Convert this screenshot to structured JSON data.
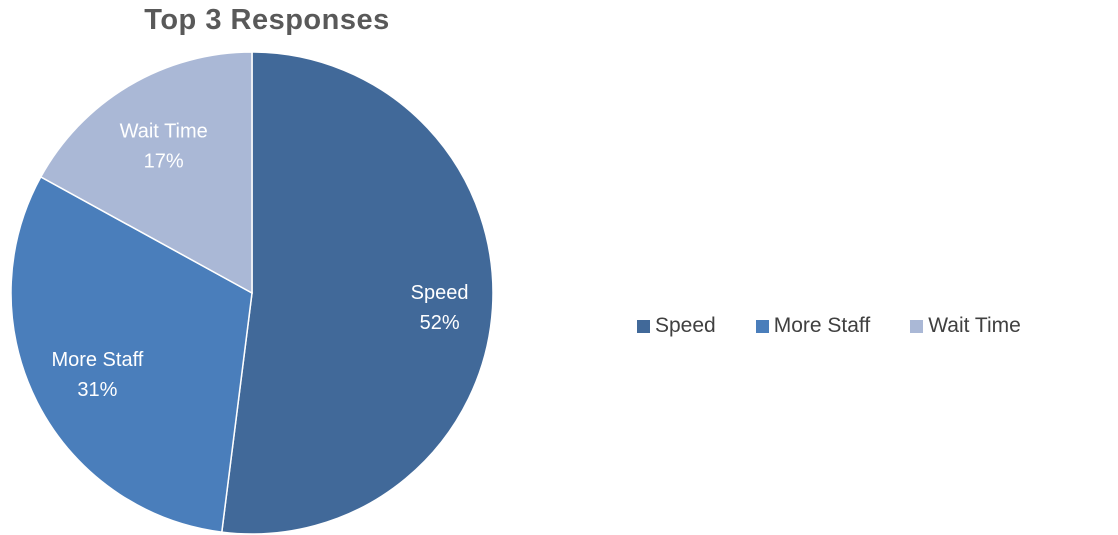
{
  "chart_data": {
    "type": "pie",
    "title": "Top 3 Responses",
    "categories": [
      "Speed",
      "More Staff",
      "Wait Time"
    ],
    "values": [
      52,
      31,
      17
    ],
    "value_labels": [
      "52%",
      "31%",
      "17%"
    ],
    "colors": [
      "#416999",
      "#4a7ebb",
      "#aab8d6"
    ],
    "start_angle_deg": 0,
    "direction": "clockwise",
    "legend_position": "right"
  }
}
